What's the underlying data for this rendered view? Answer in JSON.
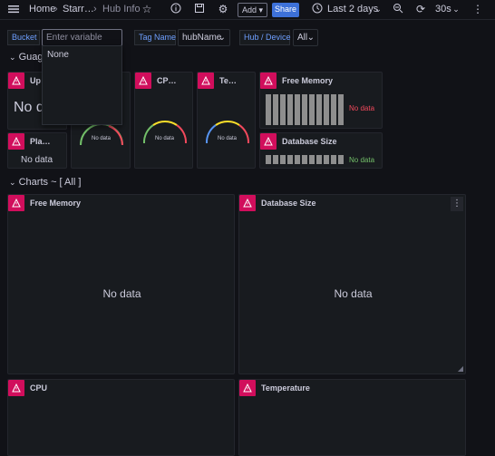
{
  "topbar": {
    "home": "Home",
    "crumb2": "Starr…",
    "crumb3": "Hub Info",
    "add_label": "Add",
    "share_label": "Share",
    "timerange": "Last 2 days",
    "refresh": "30s"
  },
  "variables": {
    "bucket_label": "Bucket",
    "bucket_placeholder": "Enter variable value",
    "tagname_label": "Tag Name",
    "tagname_value": "hubName",
    "hub_label": "Hub / Device",
    "hub_value": "All"
  },
  "dropdown": {
    "option": "None"
  },
  "rows": {
    "gauges": "Guag",
    "charts": "Charts ~ [ All ]"
  },
  "panels": {
    "uptime": {
      "title": "Up…",
      "nodata": "No da"
    },
    "platform": {
      "title": "Pla…",
      "nodata": "No data"
    },
    "gauge1": {
      "nodata": "No data"
    },
    "cpu_gauge": {
      "title": "CP…",
      "nodata": "No data"
    },
    "temp_gauge": {
      "title": "Te…",
      "nodata": "No data"
    },
    "free_memory_small": {
      "title": "Free Memory",
      "nodata": "No data"
    },
    "db_size_small": {
      "title": "Database Size",
      "nodata": "No data"
    },
    "free_memory_chart": {
      "title": "Free Memory",
      "nodata": "No data"
    },
    "db_size_chart": {
      "title": "Database Size",
      "nodata": "No data"
    },
    "cpu_chart": {
      "title": "CPU"
    },
    "temp_chart": {
      "title": "Temperature"
    }
  },
  "colors": {
    "alert": "#d10e5c",
    "share": "#3d71d9",
    "nodata_red": "#f2495c",
    "nodata_green": "#73bf69"
  }
}
